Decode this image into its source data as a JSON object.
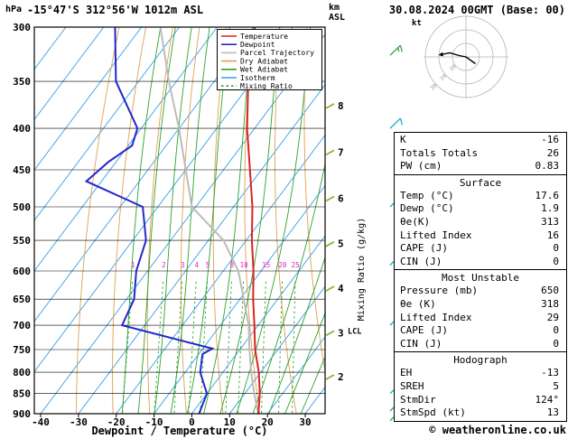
{
  "header": {
    "station": "-15°47'S 312°56'W 1012m ASL",
    "datetime": "30.08.2024 00GMT (Base: 00)"
  },
  "footer": {
    "copyright": "© weatheronline.co.uk"
  },
  "axes": {
    "pressure_unit": "hPa",
    "altitude_unit_top": "km",
    "altitude_unit_bottom": "ASL",
    "xlabel": "Dewpoint / Temperature (°C)",
    "mixing_ratio_axis_label": "Mixing Ratio (g/kg)",
    "pressure_ticks": [
      300,
      350,
      400,
      450,
      500,
      550,
      600,
      650,
      700,
      750,
      800,
      850,
      900
    ],
    "temp_ticks": [
      -40,
      -30,
      -20,
      -10,
      0,
      10,
      20,
      30
    ],
    "km_ticks": [
      {
        "km": 2,
        "p": 810
      },
      {
        "km": 3,
        "p": 715
      },
      {
        "km": 4,
        "p": 630
      },
      {
        "km": 5,
        "p": 555
      },
      {
        "km": 6,
        "p": 488
      },
      {
        "km": 7,
        "p": 428
      },
      {
        "km": 8,
        "p": 375
      }
    ],
    "lcl": {
      "label": "LCL",
      "p": 712
    }
  },
  "legend": [
    {
      "label": "Temperature",
      "color": "#dd2222",
      "dash": null
    },
    {
      "label": "Dewpoint",
      "color": "#2228cc",
      "dash": null
    },
    {
      "label": "Parcel Trajectory",
      "color": "#bcbcbc",
      "dash": null
    },
    {
      "label": "Dry Adiabat",
      "color": "#dfa050",
      "dash": null
    },
    {
      "label": "Wet Adiabat",
      "color": "#2da32d",
      "dash": null
    },
    {
      "label": "Isotherm",
      "color": "#33a0e8",
      "dash": null
    },
    {
      "label": "Mixing Ratio",
      "color": "#2da32d",
      "dash": "2.5,3"
    }
  ],
  "chart_data": {
    "type": "skewt-log-p",
    "pressure_axis_range": [
      300,
      900
    ],
    "surface_temp_axis_range": [
      -40,
      35
    ],
    "isotherm_step_c": 10,
    "mixing_ratio_values_gkg": [
      1,
      2,
      3,
      4,
      5,
      8,
      10,
      15,
      20,
      25
    ],
    "mixing_ratio_label_color": "#e020d0",
    "temperature_profile": [
      {
        "p": 900,
        "t": 17.6
      },
      {
        "p": 850,
        "t": 14
      },
      {
        "p": 800,
        "t": 9.5
      },
      {
        "p": 750,
        "t": 4
      },
      {
        "p": 700,
        "t": -1
      },
      {
        "p": 650,
        "t": -6.5
      },
      {
        "p": 600,
        "t": -12
      },
      {
        "p": 550,
        "t": -18.5
      },
      {
        "p": 500,
        "t": -25
      },
      {
        "p": 450,
        "t": -33
      },
      {
        "p": 400,
        "t": -42
      },
      {
        "p": 350,
        "t": -51
      },
      {
        "p": 300,
        "t": -60
      }
    ],
    "dewpoint_profile": [
      {
        "p": 900,
        "t": 1.9
      },
      {
        "p": 850,
        "t": 0
      },
      {
        "p": 800,
        "t": -6
      },
      {
        "p": 760,
        "t": -9
      },
      {
        "p": 748,
        "t": -7.5
      },
      {
        "p": 700,
        "t": -36
      },
      {
        "p": 650,
        "t": -38
      },
      {
        "p": 600,
        "t": -43
      },
      {
        "p": 550,
        "t": -46.5
      },
      {
        "p": 500,
        "t": -54
      },
      {
        "p": 465,
        "t": -74
      },
      {
        "p": 440,
        "t": -72
      },
      {
        "p": 420,
        "t": -69
      },
      {
        "p": 400,
        "t": -71
      },
      {
        "p": 350,
        "t": -86
      },
      {
        "p": 300,
        "t": -97
      }
    ],
    "parcel_profile": [
      {
        "p": 900,
        "t": 17.6
      },
      {
        "p": 850,
        "t": 12.5
      },
      {
        "p": 800,
        "t": 7.5
      },
      {
        "p": 750,
        "t": 2.5
      },
      {
        "p": 700,
        "t": -2.5
      },
      {
        "p": 650,
        "t": -9
      },
      {
        "p": 600,
        "t": -16
      },
      {
        "p": 550,
        "t": -26
      },
      {
        "p": 500,
        "t": -41
      },
      {
        "p": 450,
        "t": -50
      },
      {
        "p": 400,
        "t": -60
      },
      {
        "p": 350,
        "t": -72
      },
      {
        "p": 300,
        "t": -85
      }
    ],
    "wind_barbs": [
      {
        "p": 325,
        "speed_kt": 15,
        "color": "#3aa23a"
      },
      {
        "p": 400,
        "speed_kt": 10,
        "color": "#17b0c8"
      },
      {
        "p": 500,
        "speed_kt": 10,
        "color": "#17b0c8"
      },
      {
        "p": 590,
        "speed_kt": 5,
        "color": "#17b0c8"
      },
      {
        "p": 700,
        "speed_kt": 10,
        "color": "#17b0c8"
      },
      {
        "p": 850,
        "speed_kt": 10,
        "color": "#17b0c8"
      },
      {
        "p": 893,
        "speed_kt": 13,
        "color": "#3aa23a"
      },
      {
        "p": 918,
        "speed_kt": 10,
        "color": "#3aa23a"
      }
    ]
  },
  "hodograph": {
    "unit_label": "kt",
    "rings_kt": [
      10,
      20,
      30
    ],
    "trace_u_v_kt": [
      [
        7,
        -5
      ],
      [
        0,
        0
      ],
      [
        -5,
        1
      ],
      [
        -12,
        3
      ],
      [
        -17,
        2
      ]
    ]
  },
  "stats": {
    "sections": [
      {
        "title": null,
        "rows": [
          [
            "K",
            "-16"
          ],
          [
            "Totals Totals",
            "26"
          ],
          [
            "PW (cm)",
            "0.83"
          ]
        ]
      },
      {
        "title": "Surface",
        "rows": [
          [
            "Temp (°C)",
            "17.6"
          ],
          [
            "Dewp (°C)",
            "1.9"
          ],
          [
            "θe(K)",
            "313"
          ],
          [
            "Lifted Index",
            "16"
          ],
          [
            "CAPE (J)",
            "0"
          ],
          [
            "CIN (J)",
            "0"
          ]
        ]
      },
      {
        "title": "Most Unstable",
        "rows": [
          [
            "Pressure (mb)",
            "650"
          ],
          [
            "θe (K)",
            "318"
          ],
          [
            "Lifted Index",
            "29"
          ],
          [
            "CAPE (J)",
            "0"
          ],
          [
            "CIN (J)",
            "0"
          ]
        ]
      },
      {
        "title": "Hodograph",
        "rows": [
          [
            "EH",
            "-13"
          ],
          [
            "SREH",
            "5"
          ],
          [
            "StmDir",
            "124°"
          ],
          [
            "StmSpd (kt)",
            "13"
          ]
        ]
      }
    ]
  }
}
